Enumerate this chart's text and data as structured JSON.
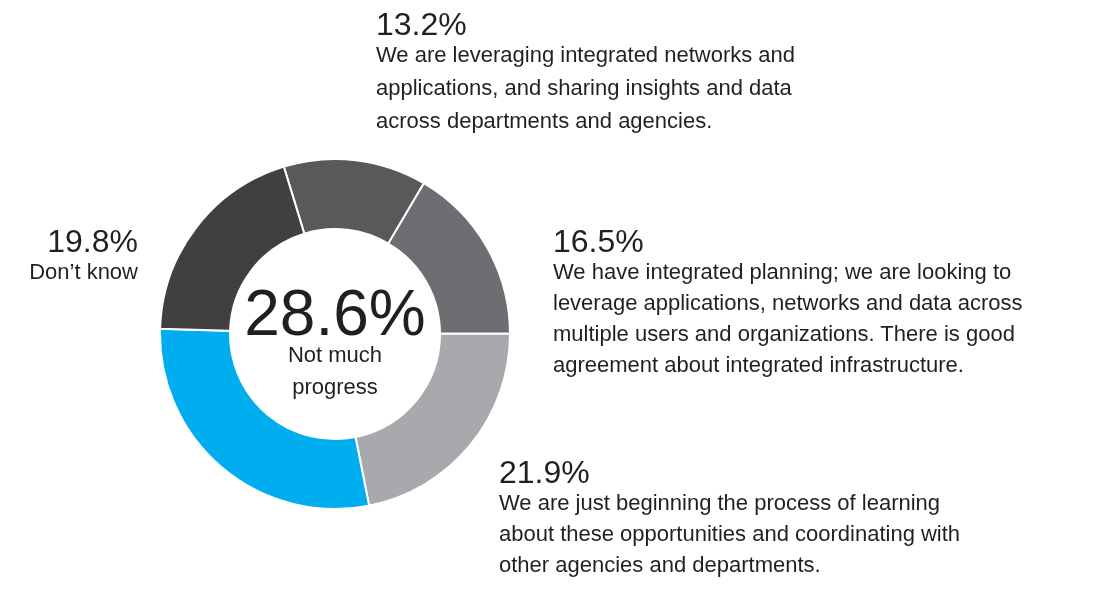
{
  "chart_data": {
    "type": "donut",
    "categories": [
      "We are leveraging integrated networks and applications, and sharing insights and data across departments and agencies.",
      "We have integrated planning; we are looking to leverage applications, networks and data across multiple users and organizations. There is good agreement about integrated infrastructure.",
      "We are just beginning the process of learning about these opportunities and coordinating with other agencies and departments.",
      "Not much progress",
      "Don’t know"
    ],
    "values": [
      13.2,
      16.5,
      21.9,
      28.6,
      19.8
    ],
    "value_labels": [
      "13.2%",
      "16.5%",
      "21.9%",
      "28.6%",
      "19.8%"
    ],
    "colors": [
      "#58595b",
      "#6d6e71",
      "#a7a9ac",
      "#00aeef",
      "#404041"
    ]
  }
}
